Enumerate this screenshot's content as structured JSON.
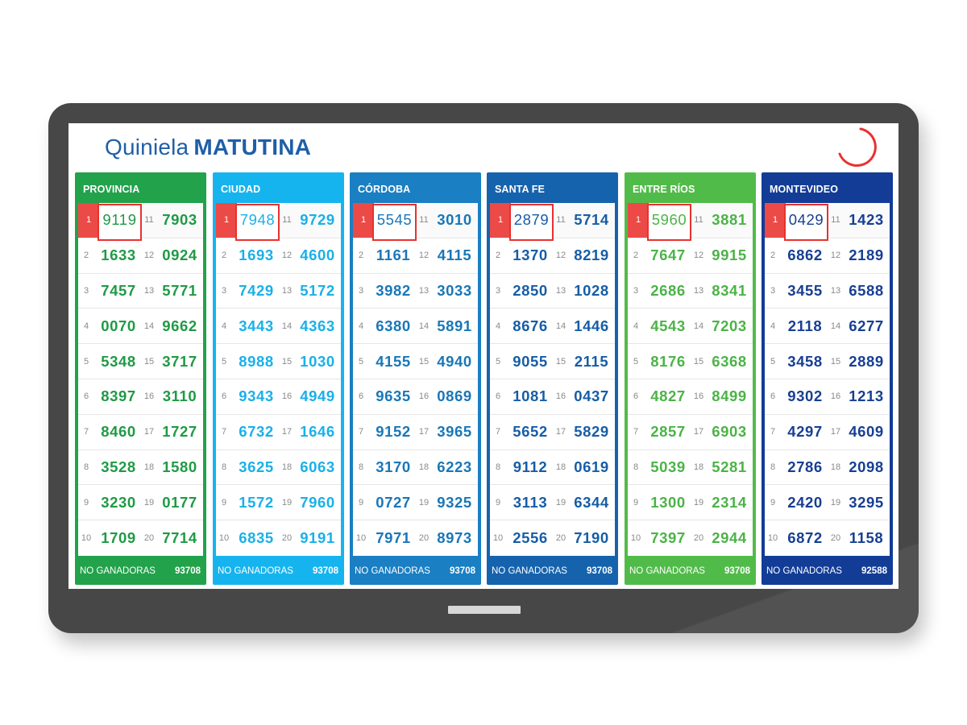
{
  "title": {
    "light": "Quiniela",
    "bold": "MATUTINA"
  },
  "columns": [
    {
      "name": "PROVINCIA",
      "color": "#22a24b",
      "text_color": "#1f9a45",
      "left": [
        "9119",
        "1633",
        "7457",
        "0070",
        "5348",
        "8397",
        "8460",
        "3528",
        "3230",
        "1709"
      ],
      "right": [
        "7903",
        "0924",
        "5771",
        "9662",
        "3717",
        "3110",
        "1727",
        "1580",
        "0177",
        "7714"
      ],
      "footer_label": "NO GANADORAS",
      "footer_value": "93708"
    },
    {
      "name": "CIUDAD",
      "color": "#16b4ee",
      "text_color": "#1ab0e8",
      "left": [
        "7948",
        "1693",
        "7429",
        "3443",
        "8988",
        "9343",
        "6732",
        "3625",
        "1572",
        "6835"
      ],
      "right": [
        "9729",
        "4600",
        "5172",
        "4363",
        "1030",
        "4949",
        "1646",
        "6063",
        "7960",
        "9191"
      ],
      "footer_label": "NO GANADORAS",
      "footer_value": "93708"
    },
    {
      "name": "CÓRDOBA",
      "color": "#1a7fc3",
      "text_color": "#1977b8",
      "left": [
        "5545",
        "1161",
        "3982",
        "6380",
        "4155",
        "9635",
        "9152",
        "3170",
        "0727",
        "7971"
      ],
      "right": [
        "3010",
        "4115",
        "3033",
        "5891",
        "4940",
        "0869",
        "3965",
        "6223",
        "9325",
        "8973"
      ],
      "footer_label": "NO GANADORAS",
      "footer_value": "93708"
    },
    {
      "name": "SANTA FE",
      "color": "#1663ad",
      "text_color": "#165da6",
      "left": [
        "2879",
        "1370",
        "2850",
        "8676",
        "9055",
        "1081",
        "5652",
        "9112",
        "3113",
        "2556"
      ],
      "right": [
        "5714",
        "8219",
        "1028",
        "1446",
        "2115",
        "0437",
        "5829",
        "0619",
        "6344",
        "7190"
      ],
      "footer_label": "NO GANADORAS",
      "footer_value": "93708"
    },
    {
      "name": "ENTRE RÍOS",
      "color": "#51bb4a",
      "text_color": "#4cb347",
      "left": [
        "5960",
        "7647",
        "2686",
        "4543",
        "8176",
        "4827",
        "2857",
        "5039",
        "1300",
        "7397"
      ],
      "right": [
        "3881",
        "9915",
        "8341",
        "7203",
        "6368",
        "8499",
        "6903",
        "5281",
        "2314",
        "2944"
      ],
      "footer_label": "NO GANADORAS",
      "footer_value": "93708"
    },
    {
      "name": "MONTEVIDEO",
      "color": "#123c96",
      "text_color": "#173f93",
      "left": [
        "0429",
        "6862",
        "3455",
        "2118",
        "3458",
        "9302",
        "4297",
        "2786",
        "2420",
        "6872"
      ],
      "right": [
        "1423",
        "2189",
        "6588",
        "6277",
        "2889",
        "1213",
        "4609",
        "2098",
        "3295",
        "1158"
      ],
      "footer_label": "NO GANADORAS",
      "footer_value": "92588"
    }
  ]
}
